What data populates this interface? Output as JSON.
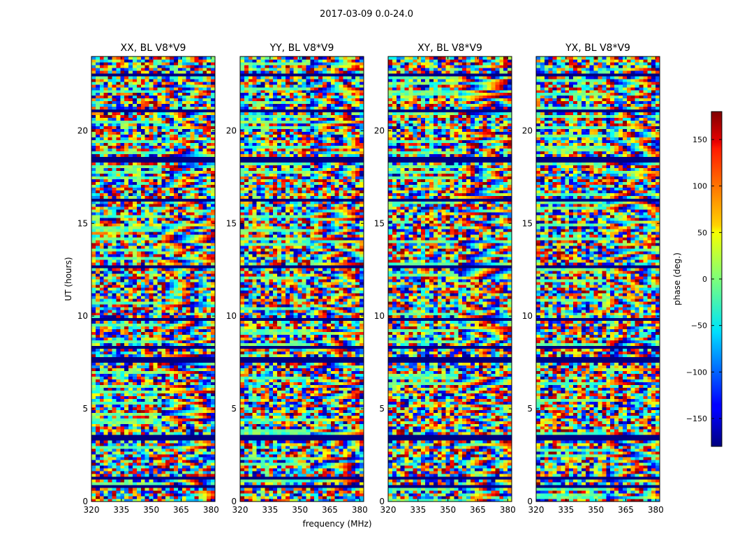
{
  "figure": {
    "suptitle": "2017-03-09 0.0-24.0"
  },
  "chart_data": {
    "type": "heatmap",
    "title": "2017-03-09 0.0-24.0",
    "xlabel": "frequency (MHz)",
    "ylabel": "UT (hours)",
    "xlim": [
      320,
      382
    ],
    "ylim": [
      0,
      24
    ],
    "x_ticks": [
      320,
      335,
      350,
      365,
      380
    ],
    "y_ticks": [
      0,
      5,
      10,
      15,
      20
    ],
    "panels": [
      {
        "title": "XX, BL V8*V9",
        "pol": "XX"
      },
      {
        "title": "YY, BL V8*V9",
        "pol": "YY"
      },
      {
        "title": "XY, BL V8*V9",
        "pol": "XY"
      },
      {
        "title": "YX, BL V8*V9",
        "pol": "YX"
      }
    ],
    "colorbar": {
      "label": "phase (deg.)",
      "range": [
        -180,
        180
      ],
      "ticks": [
        -150,
        -100,
        -50,
        0,
        50,
        100,
        150
      ],
      "tick_labels": [
        "−150",
        "−100",
        "−50",
        "0",
        "50",
        "100",
        "150"
      ],
      "colormap": "jet"
    },
    "flagged_bands_ut": [
      [
        0.75,
        0.95
      ],
      [
        1.25,
        1.35
      ],
      [
        2.05,
        2.15
      ],
      [
        3.3,
        3.55
      ],
      [
        7.5,
        7.8
      ],
      [
        8.25,
        8.35
      ],
      [
        9.75,
        9.95
      ],
      [
        12.6,
        12.75
      ],
      [
        16.2,
        16.3
      ],
      [
        17.8,
        17.9
      ],
      [
        18.3,
        18.6
      ],
      [
        21.0,
        21.2
      ],
      [
        23.0,
        23.1
      ]
    ],
    "colors": {
      "flag": "#00007f",
      "axes_edge": "#000000"
    }
  }
}
